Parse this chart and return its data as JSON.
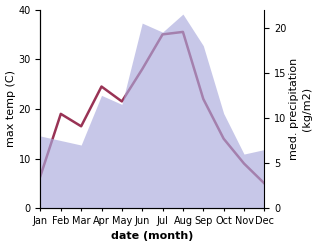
{
  "months": [
    "Jan",
    "Feb",
    "Mar",
    "Apr",
    "May",
    "Jun",
    "Jul",
    "Aug",
    "Sep",
    "Oct",
    "Nov",
    "Dec"
  ],
  "max_temp": [
    6.5,
    19.0,
    16.5,
    24.5,
    21.5,
    28.0,
    35.0,
    35.5,
    22.0,
    14.0,
    9.0,
    5.0
  ],
  "precipitation": [
    8.0,
    7.5,
    7.0,
    12.5,
    11.5,
    20.5,
    19.5,
    21.5,
    18.0,
    10.5,
    6.0,
    6.5
  ],
  "temp_color": "#993355",
  "precip_color": "#aaaadd",
  "temp_ylim": [
    0,
    40
  ],
  "precip_ylim": [
    0,
    22
  ],
  "precip_yticks": [
    0,
    5,
    10,
    15,
    20
  ],
  "temp_yticks": [
    0,
    10,
    20,
    30,
    40
  ],
  "xlabel": "date (month)",
  "ylabel_left": "max temp (C)",
  "ylabel_right": "med. precipitation\n(kg/m2)",
  "background_color": "#ffffff",
  "xlabel_fontsize": 8,
  "ylabel_fontsize": 8,
  "tick_fontsize": 7
}
